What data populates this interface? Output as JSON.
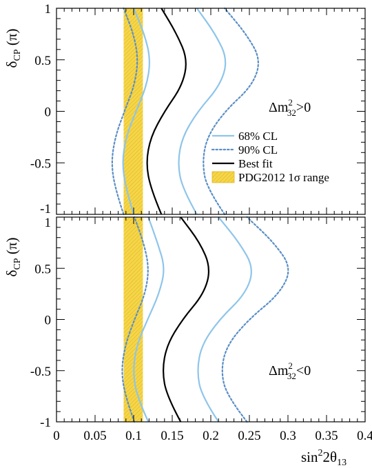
{
  "chart_data": {
    "type": "line",
    "xlabel": {
      "base": "sin",
      "sup": "2",
      "mid": "2θ",
      "sub": "13"
    },
    "ylabel": {
      "base": "δ",
      "sub": "CP",
      "tail": " (π)"
    },
    "xlim": [
      0,
      0.4
    ],
    "ylim": [
      -1,
      1
    ],
    "x_ticks": [
      "0",
      "0.05",
      "0.1",
      "0.15",
      "0.2",
      "0.25",
      "0.3",
      "0.35",
      "0.4"
    ],
    "y_ticks": [
      "-1",
      "-0.5",
      "0",
      "0.5",
      "1"
    ],
    "band": {
      "label": "PDG2012 1σ range",
      "x_range": [
        0.087,
        0.112
      ],
      "color": "#f5d64a"
    },
    "colors": {
      "cl68": "#8ec5ea",
      "cl90": "#5b8fc7",
      "best": "#000000"
    },
    "legend": [
      {
        "key": "cl68",
        "label": "68% CL",
        "style": "solid"
      },
      {
        "key": "cl90",
        "label": "90% CL",
        "style": "dotted"
      },
      {
        "key": "best",
        "label": "Best fit",
        "style": "solid-black"
      },
      {
        "key": "band",
        "label": "PDG2012 1σ range",
        "style": "box"
      }
    ],
    "panels": [
      {
        "annotation": {
          "pre": "Δm",
          "sup": "2",
          "sub": "32",
          "post": ">0"
        },
        "delta": [
          -1,
          -0.75,
          -0.5,
          -0.25,
          0,
          0.25,
          0.5,
          0.75,
          1
        ],
        "series": [
          {
            "key": "best",
            "x": [
              0.136,
              0.122,
              0.116,
              0.122,
              0.14,
              0.163,
              0.17,
              0.156,
              0.136
            ]
          },
          {
            "key": "cl68",
            "x": [
              0.1,
              0.09,
              0.085,
              0.09,
              0.103,
              0.117,
              0.122,
              0.114,
              0.1
            ]
          },
          {
            "key": "cl68",
            "x": [
              0.182,
              0.163,
              0.157,
              0.163,
              0.183,
              0.212,
              0.222,
              0.206,
              0.182
            ]
          },
          {
            "key": "cl90",
            "x": [
              0.087,
              0.076,
              0.071,
              0.076,
              0.088,
              0.101,
              0.106,
              0.1,
              0.087
            ]
          },
          {
            "key": "cl90",
            "x": [
              0.218,
              0.195,
              0.189,
              0.195,
              0.218,
              0.254,
              0.265,
              0.246,
              0.218
            ]
          }
        ]
      },
      {
        "annotation": {
          "pre": "Δm",
          "sup": "2",
          "sub": "32",
          "post": "<0"
        },
        "delta": [
          -1,
          -0.75,
          -0.5,
          -0.25,
          0,
          0.25,
          0.5,
          0.75,
          1
        ],
        "series": [
          {
            "key": "best",
            "x": [
              0.161,
              0.143,
              0.137,
              0.143,
              0.163,
              0.191,
              0.2,
              0.186,
              0.161
            ]
          },
          {
            "key": "cl68",
            "x": [
              0.119,
              0.104,
              0.099,
              0.104,
              0.118,
              0.133,
              0.141,
              0.131,
              0.119
            ]
          },
          {
            "key": "cl68",
            "x": [
              0.21,
              0.188,
              0.182,
              0.188,
              0.211,
              0.245,
              0.256,
              0.237,
              0.21
            ]
          },
          {
            "key": "cl90",
            "x": [
              0.101,
              0.089,
              0.084,
              0.089,
              0.101,
              0.115,
              0.12,
              0.113,
              0.101
            ]
          },
          {
            "key": "cl90",
            "x": [
              0.247,
              0.221,
              0.213,
              0.221,
              0.249,
              0.289,
              0.305,
              0.282,
              0.247
            ]
          }
        ]
      }
    ]
  }
}
